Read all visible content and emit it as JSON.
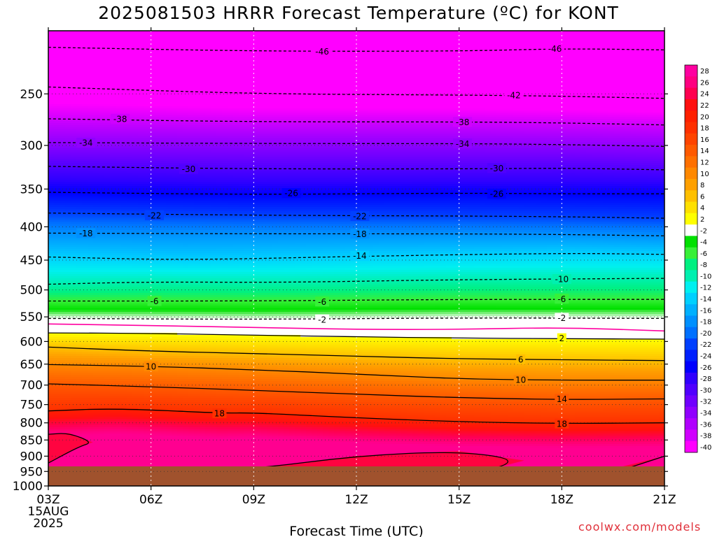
{
  "title": "2025081503 HRRR Forecast Temperature (ºC) for KONT",
  "credit": "coolwx.com/models",
  "chart_data": {
    "type": "heatmap",
    "title": "2025081503 HRRR Forecast Temperature (ºC) for KONT",
    "xlabel": "Forecast Time (UTC)",
    "ylabel": "",
    "x_ticks": [
      "03Z",
      "06Z",
      "09Z",
      "12Z",
      "15Z",
      "18Z",
      "21Z"
    ],
    "x_tick_sublabels": [
      "15AUG",
      "2025"
    ],
    "x_range_hours_utc": [
      3,
      21
    ],
    "y_ticks": [
      250,
      300,
      350,
      400,
      450,
      500,
      550,
      600,
      650,
      700,
      750,
      800,
      850,
      900,
      950,
      1000
    ],
    "y_range": [
      200,
      1000
    ],
    "y_scale": "log",
    "y_reversed": true,
    "grid": "dotted",
    "colorbar": {
      "levels": [
        28,
        26,
        24,
        22,
        20,
        18,
        16,
        14,
        12,
        10,
        8,
        6,
        4,
        2,
        -2,
        -4,
        -6,
        -8,
        -10,
        -12,
        -14,
        -16,
        -18,
        -20,
        -22,
        -24,
        -26,
        -28,
        -30,
        -32,
        -34,
        -36,
        -38,
        -40
      ],
      "colors": [
        "#ff00a0",
        "#ff0080",
        "#ff0050",
        "#ff1010",
        "#ff2000",
        "#ff3000",
        "#ff4400",
        "#ff5a00",
        "#ff7000",
        "#ff8800",
        "#ffa000",
        "#ffc000",
        "#ffe000",
        "#ffff00",
        "#ffffff",
        "#00e000",
        "#38f038",
        "#00f080",
        "#00f0b0",
        "#00f0f0",
        "#00d0ff",
        "#00b0ff",
        "#0090ff",
        "#0070ff",
        "#0040ff",
        "#0020ff",
        "#0000ff",
        "#3000ff",
        "#5000ff",
        "#7000ff",
        "#9000ff",
        "#b000ff",
        "#d000ff",
        "#ff00ff"
      ],
      "placement": "right"
    },
    "surface_pressure": 975,
    "contours": [
      {
        "level": -46,
        "style": "dashed",
        "pts": [
          [
            3,
            212
          ],
          [
            9,
            215
          ],
          [
            15,
            215
          ],
          [
            18,
            213
          ],
          [
            21,
            214
          ]
        ],
        "label_at": [
          [
            11,
            215
          ],
          [
            17.8,
            213
          ]
        ]
      },
      {
        "level": -42,
        "style": "dashed",
        "pts": [
          [
            3,
            244
          ],
          [
            9,
            250
          ],
          [
            15,
            251
          ],
          [
            18,
            252
          ],
          [
            21,
            254
          ]
        ],
        "label_at": [
          [
            16.6,
            251
          ]
        ]
      },
      {
        "level": -38,
        "style": "dashed",
        "pts": [
          [
            3,
            273
          ],
          [
            9,
            276
          ],
          [
            15,
            276
          ],
          [
            18,
            277
          ],
          [
            21,
            279
          ]
        ],
        "label_at": [
          [
            5.1,
            273
          ],
          [
            15.1,
            276
          ]
        ]
      },
      {
        "level": -34,
        "style": "dashed",
        "pts": [
          [
            3,
            297
          ],
          [
            9,
            298
          ],
          [
            15,
            298
          ],
          [
            18,
            299
          ],
          [
            21,
            301
          ]
        ],
        "label_at": [
          [
            4.1,
            297
          ],
          [
            15.1,
            298
          ]
        ]
      },
      {
        "level": -30,
        "style": "dashed",
        "pts": [
          [
            3,
            323
          ],
          [
            9,
            326
          ],
          [
            15,
            326
          ],
          [
            18,
            325
          ],
          [
            21,
            327
          ]
        ],
        "label_at": [
          [
            7.1,
            326
          ],
          [
            16.1,
            325
          ]
        ]
      },
      {
        "level": -26,
        "style": "dashed",
        "pts": [
          [
            3,
            354
          ],
          [
            9,
            357
          ],
          [
            15,
            355
          ],
          [
            18,
            356
          ],
          [
            21,
            356
          ]
        ],
        "label_at": [
          [
            10.1,
            355
          ],
          [
            16.1,
            356
          ]
        ]
      },
      {
        "level": -22,
        "style": "dashed",
        "pts": [
          [
            3,
            381
          ],
          [
            9,
            384
          ],
          [
            15,
            385
          ],
          [
            18,
            386
          ],
          [
            21,
            388
          ]
        ],
        "label_at": [
          [
            6.1,
            384
          ],
          [
            12.1,
            385
          ]
        ]
      },
      {
        "level": -18,
        "style": "dashed",
        "pts": [
          [
            3,
            409
          ],
          [
            9,
            410
          ],
          [
            15,
            410
          ],
          [
            18,
            411
          ],
          [
            21,
            413
          ]
        ],
        "label_at": [
          [
            4.1,
            409
          ],
          [
            12.1,
            410
          ]
        ]
      },
      {
        "level": -14,
        "style": "dashed",
        "pts": [
          [
            3,
            445
          ],
          [
            7,
            450
          ],
          [
            12,
            444
          ],
          [
            18,
            439
          ],
          [
            21,
            441
          ]
        ],
        "label_at": [
          [
            12.1,
            443
          ]
        ]
      },
      {
        "level": -10,
        "style": "dashed",
        "pts": [
          [
            3,
            490
          ],
          [
            6,
            486
          ],
          [
            10,
            487
          ],
          [
            15,
            482
          ],
          [
            21,
            480
          ]
        ],
        "label_at": [
          [
            18,
            481
          ]
        ]
      },
      {
        "level": -6,
        "style": "dashed",
        "pts": [
          [
            3,
            520
          ],
          [
            9,
            520
          ],
          [
            15,
            517
          ],
          [
            21,
            517
          ]
        ],
        "label_at": [
          [
            6.1,
            520
          ],
          [
            11,
            521
          ],
          [
            18,
            516
          ]
        ]
      },
      {
        "level": -2,
        "style": "dashed",
        "pts": [
          [
            3,
            553
          ],
          [
            9,
            555
          ],
          [
            15,
            552
          ],
          [
            21,
            553
          ]
        ],
        "label_at": [
          [
            11,
            555
          ],
          [
            18,
            552
          ]
        ]
      },
      {
        "level": 0,
        "style": "magenta",
        "pts": [
          [
            3,
            564
          ],
          [
            6,
            567
          ],
          [
            9,
            571
          ],
          [
            12,
            575
          ],
          [
            15,
            575
          ],
          [
            18,
            571
          ],
          [
            21,
            578
          ]
        ]
      },
      {
        "level": 2,
        "style": "solid",
        "pts": [
          [
            3,
            582
          ],
          [
            6,
            583
          ],
          [
            9,
            587
          ],
          [
            12,
            590
          ],
          [
            15,
            593
          ],
          [
            18,
            594
          ],
          [
            21,
            595
          ]
        ],
        "label_at": [
          [
            18,
            593
          ]
        ]
      },
      {
        "level": 6,
        "style": "solid",
        "pts": [
          [
            3,
            612
          ],
          [
            6,
            621
          ],
          [
            9,
            626
          ],
          [
            12,
            632
          ],
          [
            15,
            638
          ],
          [
            18,
            640
          ],
          [
            21,
            642
          ]
        ],
        "label_at": [
          [
            16.8,
            639
          ]
        ]
      },
      {
        "level": 10,
        "style": "solid",
        "pts": [
          [
            3,
            651
          ],
          [
            6,
            655
          ],
          [
            9,
            663
          ],
          [
            12,
            673
          ],
          [
            15,
            685
          ],
          [
            18,
            688
          ],
          [
            21,
            688
          ]
        ],
        "label_at": [
          [
            6,
            655
          ],
          [
            16.8,
            687
          ]
        ]
      },
      {
        "level": 14,
        "style": "solid",
        "pts": [
          [
            3,
            697
          ],
          [
            6,
            704
          ],
          [
            9,
            713
          ],
          [
            12,
            723
          ],
          [
            15,
            732
          ],
          [
            18,
            737
          ],
          [
            21,
            735
          ]
        ],
        "label_at": [
          [
            18,
            735
          ]
        ]
      },
      {
        "level": 18,
        "style": "solid",
        "pts": [
          [
            3,
            767
          ],
          [
            5,
            760
          ],
          [
            8,
            773
          ],
          [
            9,
            772
          ],
          [
            12,
            786
          ],
          [
            15,
            797
          ],
          [
            18,
            802
          ],
          [
            21,
            800
          ]
        ],
        "label_at": [
          [
            8,
            773
          ],
          [
            18,
            802
          ]
        ]
      },
      {
        "level": 22,
        "style": "solid",
        "pts": [
          [
            3,
            833
          ],
          [
            3.6,
            829
          ],
          [
            4.3,
            857
          ],
          [
            3.9,
            870
          ],
          [
            3,
            922
          ]
        ]
      },
      {
        "level": 22,
        "style": "solid",
        "pts": [
          [
            5.4,
            968
          ],
          [
            5.8,
            958
          ],
          [
            9,
            942
          ],
          [
            12,
            899
          ],
          [
            15,
            884
          ],
          [
            16.9,
            914
          ],
          [
            15,
            970
          ],
          [
            12,
            980
          ],
          [
            9,
            983
          ]
        ]
      },
      {
        "level": 22,
        "style": "solid",
        "pts": [
          [
            18,
            984
          ],
          [
            19.5,
            955
          ],
          [
            21,
            900
          ]
        ]
      },
      {
        "level": 22,
        "style": "solid",
        "pts": [
          [
            20.2,
            990
          ],
          [
            21,
            952
          ]
        ]
      }
    ]
  }
}
